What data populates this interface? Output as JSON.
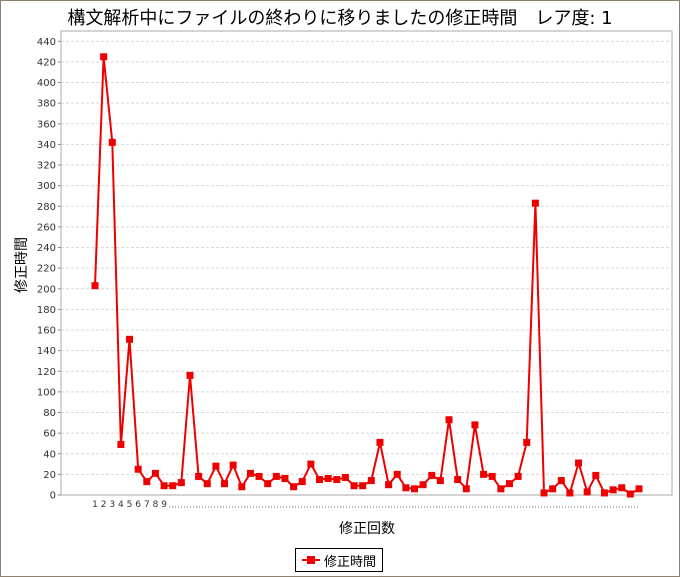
{
  "title": "構文解析中にファイルの終わりに移りましたの修正時間　レア度: 1",
  "chart_data": {
    "type": "line",
    "title": "構文解析中にファイルの終わりに移りましたの修正時間　レア度: 1",
    "xlabel": "修正回数",
    "ylabel": "修正時間",
    "ylim": [
      0,
      450
    ],
    "y_ticks": [
      0,
      20,
      40,
      60,
      80,
      100,
      120,
      140,
      160,
      180,
      200,
      220,
      240,
      260,
      280,
      300,
      320,
      340,
      360,
      380,
      400,
      420,
      440
    ],
    "x_tick_labels": [
      "1",
      "2",
      "3",
      "4",
      "5",
      "6",
      "7",
      "8",
      "9"
    ],
    "grid": true,
    "legend_position": "bottom",
    "series_color": "#ee0000",
    "series": [
      {
        "name": "修正時間",
        "values": [
          203,
          425,
          342,
          49,
          151,
          25,
          13,
          21,
          9,
          9,
          12,
          116,
          18,
          11,
          28,
          11,
          29,
          8,
          21,
          18,
          11,
          18,
          16,
          8,
          13,
          30,
          15,
          16,
          15,
          17,
          9,
          9,
          14,
          51,
          10,
          20,
          7,
          6,
          10,
          19,
          14,
          73,
          15,
          6,
          68,
          20,
          18,
          6,
          11,
          18,
          51,
          283,
          2,
          6,
          14,
          2,
          31,
          3,
          19,
          2,
          5,
          7,
          1,
          6
        ]
      }
    ]
  }
}
